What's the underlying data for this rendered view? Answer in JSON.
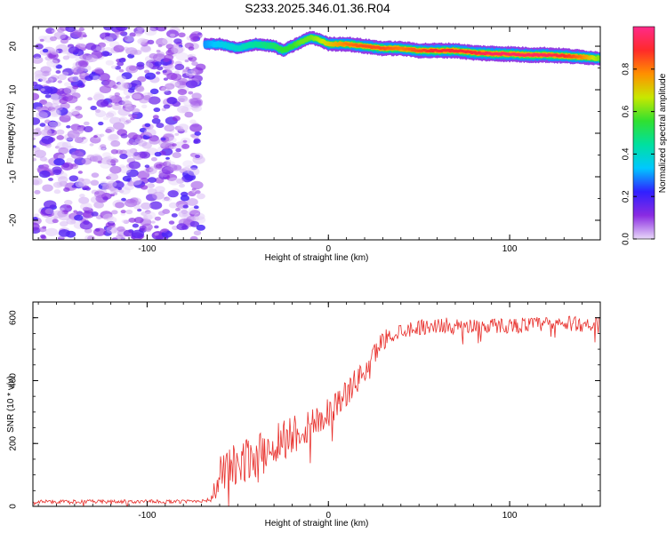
{
  "title": "S233.2025.346.01.36.R04",
  "chart_data": [
    {
      "type": "heatmap",
      "xlabel": "Height of straight line (km)",
      "ylabel": "Frequency (Hz)",
      "xlim": [
        -163,
        150
      ],
      "ylim": [
        -24.5,
        24.5
      ],
      "xticks": [
        -100,
        0,
        100
      ],
      "xtick_labels": [
        "-100",
        "0",
        "100"
      ],
      "yticks": [
        -20,
        -10,
        0,
        10,
        20
      ],
      "ytick_labels": [
        "-20",
        "-10",
        "0",
        "10",
        "20"
      ],
      "colorbar": {
        "label": "Normalized spectral amplitude",
        "range": [
          0,
          1
        ],
        "ticks": [
          0.0,
          0.2,
          0.4,
          0.6,
          0.8
        ],
        "tick_labels": [
          "0.0",
          "0.2",
          "0.4",
          "0.6",
          "0.8"
        ],
        "colors": [
          "#e8d8f8",
          "#8a2be2",
          "#3020ff",
          "#00c8ff",
          "#00e0a0",
          "#30e030",
          "#c8e800",
          "#ff9000",
          "#ff2a2a",
          "#ff2a8a"
        ]
      },
      "noise_region_x": [
        -163,
        -70
      ],
      "signal_ridge": {
        "x": [
          -68,
          -60,
          -50,
          -40,
          -30,
          -25,
          -20,
          -15,
          -10,
          -5,
          0,
          10,
          20,
          30,
          40,
          50,
          60,
          70,
          80,
          90,
          100,
          110,
          120,
          130,
          140,
          150
        ],
        "y": [
          20.5,
          20.5,
          19.5,
          20.5,
          20.0,
          19.0,
          20.0,
          21.0,
          22.0,
          21.5,
          20.5,
          20.5,
          20.0,
          19.5,
          19.5,
          19.0,
          19.0,
          19.0,
          18.5,
          18.3,
          18.2,
          18.0,
          18.0,
          17.8,
          17.5,
          17.2
        ],
        "amplitude": [
          0.3,
          0.35,
          0.4,
          0.45,
          0.5,
          0.55,
          0.55,
          0.6,
          0.6,
          0.65,
          0.7,
          0.8,
          0.85,
          0.85,
          0.8,
          0.85,
          0.9,
          0.9,
          0.9,
          0.95,
          0.95,
          0.95,
          0.95,
          0.9,
          0.8,
          0.6
        ]
      }
    },
    {
      "type": "line",
      "xlabel": "Height of straight line (km)",
      "ylabel": "SNR (10 * v/v)",
      "xlim": [
        -163,
        150
      ],
      "ylim": [
        0,
        650
      ],
      "xticks": [
        -100,
        0,
        100
      ],
      "xtick_labels": [
        "-100",
        "0",
        "100"
      ],
      "yticks": [
        0,
        200,
        400,
        600
      ],
      "ytick_labels": [
        "0",
        "200",
        "400",
        "600"
      ],
      "color": "#e8302c",
      "trend": {
        "x": [
          -163,
          -140,
          -120,
          -100,
          -80,
          -65,
          -60,
          -55,
          -50,
          -45,
          -40,
          -35,
          -30,
          -20,
          -10,
          0,
          10,
          20,
          25,
          30,
          40,
          50,
          60,
          80,
          100,
          120,
          140,
          150
        ],
        "y": [
          15,
          15,
          15,
          15,
          15,
          20,
          90,
          130,
          120,
          150,
          160,
          170,
          200,
          230,
          260,
          300,
          360,
          430,
          480,
          530,
          560,
          570,
          575,
          575,
          575,
          580,
          580,
          580
        ]
      },
      "noise_amplitude": {
        "x": [
          -163,
          -65,
          -60,
          -20,
          0,
          20,
          40,
          150
        ],
        "y": [
          6,
          6,
          70,
          70,
          50,
          40,
          25,
          25
        ]
      }
    }
  ]
}
